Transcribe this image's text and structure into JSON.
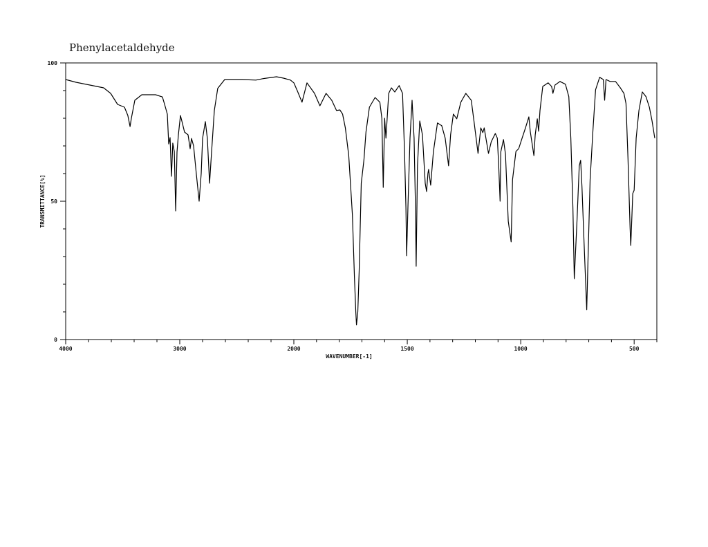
{
  "chart_data": {
    "type": "line",
    "title": "Phenylacetaldehyde",
    "xlabel": "WAVENUMBER[-1]",
    "ylabel": "TRANSMITTANCE[%]",
    "xlim": [
      4000,
      400
    ],
    "x_scale": "piecewise linear, 4000-2000 compressed relative to 2000-400",
    "ylim": [
      0,
      100
    ],
    "grid": false,
    "line_color": "#000000",
    "x_tick_labels": [
      "4000",
      "3000",
      "2000",
      "1500",
      "1000",
      "500"
    ],
    "y_tick_labels": [
      "100",
      "50",
      "0"
    ],
    "series": [
      {
        "x": [
          4000,
          3909,
          3788,
          3667,
          3606,
          3545,
          3485,
          3455,
          3436,
          3424,
          3394,
          3333,
          3212,
          3152,
          3133,
          3109,
          3097,
          3085,
          3073,
          3061,
          3048,
          3036,
          3024,
          3012,
          2994,
          2976,
          2958,
          2927,
          2909,
          2897,
          2879,
          2855,
          2830,
          2812,
          2800,
          2776,
          2758,
          2739,
          2721,
          2697,
          2667,
          2606,
          2455,
          2333,
          2273,
          2152,
          2091,
          2030,
          2000,
          1985,
          1964,
          1942,
          1909,
          1885,
          1858,
          1833,
          1812,
          1797,
          1785,
          1773,
          1758,
          1742,
          1733,
          1727,
          1724,
          1718,
          1712,
          1703,
          1691,
          1682,
          1667,
          1642,
          1621,
          1612,
          1606,
          1600,
          1594,
          1582,
          1570,
          1555,
          1536,
          1521,
          1512,
          1506,
          1503,
          1497,
          1488,
          1479,
          1470,
          1464,
          1461,
          1455,
          1445,
          1433,
          1421,
          1415,
          1409,
          1406,
          1397,
          1385,
          1367,
          1348,
          1333,
          1318,
          1309,
          1297,
          1282,
          1264,
          1242,
          1218,
          1206,
          1188,
          1176,
          1167,
          1161,
          1142,
          1130,
          1112,
          1103,
          1097,
          1091,
          1088,
          1076,
          1067,
          1055,
          1042,
          1036,
          1021,
          1009,
          994,
          979,
          964,
          958,
          942,
          936,
          927,
          921,
          915,
          903,
          879,
          864,
          858,
          849,
          827,
          803,
          788,
          779,
          770,
          764,
          752,
          742,
          736,
          730,
          721,
          709,
          703,
          694,
          682,
          670,
          652,
          636,
          630,
          624,
          606,
          582,
          561,
          545,
          536,
          527,
          518,
          515,
          506,
          500,
          491,
          479,
          464,
          448,
          433,
          421,
          409
        ],
        "y": [
          94,
          93,
          92,
          91,
          89,
          85,
          84,
          81,
          77,
          80,
          86.5,
          88.5,
          88.5,
          87.7,
          85,
          81.5,
          70.7,
          73,
          59,
          71,
          68,
          46.5,
          67.8,
          74,
          81,
          78,
          75,
          74,
          69,
          72.7,
          70,
          60,
          50,
          60,
          72.7,
          78.8,
          72.7,
          56.5,
          67.8,
          82.8,
          90.8,
          94,
          94,
          93.8,
          94.3,
          95,
          94.5,
          93.8,
          92.8,
          90,
          85.8,
          92.8,
          89,
          84.5,
          89,
          86.5,
          82.8,
          83,
          81.5,
          76.5,
          66.5,
          45,
          22.8,
          10,
          5.3,
          10,
          25,
          56.5,
          65,
          75,
          84,
          87.5,
          85.8,
          80,
          55,
          80,
          72.8,
          89,
          91,
          89.5,
          91.8,
          89,
          67.8,
          47.8,
          30.3,
          47.8,
          72.8,
          86.5,
          72.8,
          47.8,
          26.5,
          62.8,
          79,
          74,
          56.5,
          53.5,
          60,
          61.5,
          55.8,
          67.8,
          78.3,
          77.3,
          72.8,
          62.8,
          74,
          81.5,
          79.8,
          85.8,
          89,
          86.5,
          79,
          67.3,
          76.5,
          74.8,
          76.5,
          67.3,
          71.5,
          74.5,
          72.8,
          62.8,
          50,
          67.8,
          72.3,
          67,
          42.8,
          35.3,
          57.8,
          68,
          69,
          72.8,
          76.5,
          80.5,
          75.3,
          66.5,
          74,
          79.8,
          75.3,
          82.8,
          91.5,
          92.8,
          91.5,
          89,
          92,
          93.3,
          92.3,
          87.8,
          72.8,
          47.8,
          22,
          42.8,
          62.8,
          64.8,
          55.3,
          35.3,
          10.8,
          30.3,
          57.8,
          75.3,
          90.3,
          94.8,
          94,
          86.5,
          94,
          93.3,
          93.3,
          91,
          89,
          85.3,
          65.3,
          40.3,
          34,
          52.8,
          54,
          72.8,
          82.8,
          89.5,
          87.8,
          84,
          79,
          72.8
        ]
      }
    ]
  }
}
